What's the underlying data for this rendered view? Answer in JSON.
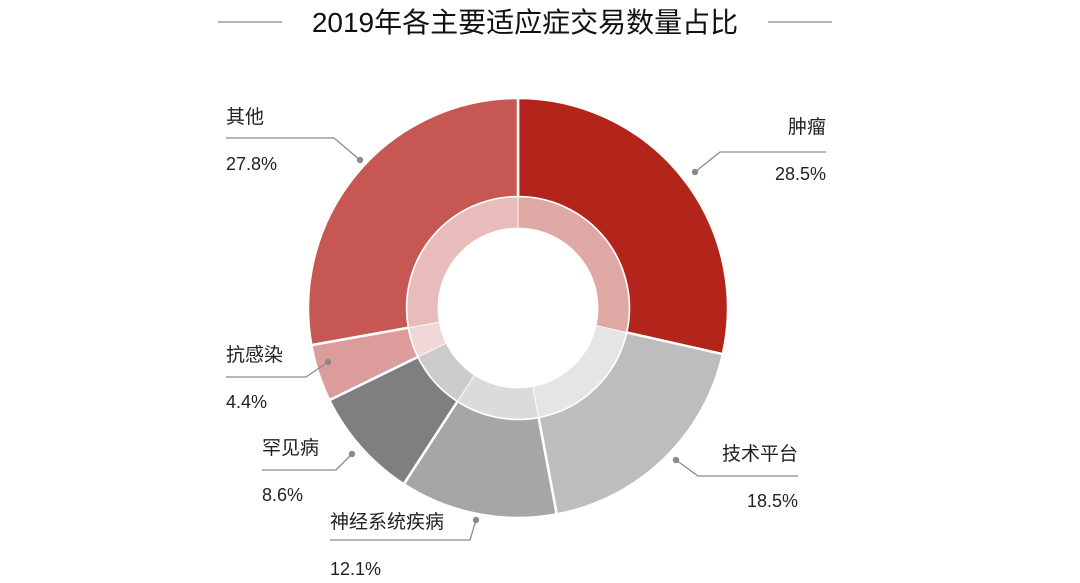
{
  "chart_data": {
    "type": "pie",
    "title": "2019年各主要适应症交易数量占比",
    "unit": "%",
    "categories": [
      "肿瘤",
      "技术平台",
      "神经系统疾病",
      "罕见病",
      "抗感染",
      "其他"
    ],
    "values": [
      28.5,
      18.5,
      12.1,
      8.6,
      4.4,
      27.8
    ],
    "value_labels": [
      "28.5%",
      "18.5%",
      "12.1%",
      "8.6%",
      "4.4%",
      "27.8%"
    ],
    "colors": [
      "#b3241a",
      "#bdbdbd",
      "#a6a6a6",
      "#7f7f7f",
      "#dd9c9c",
      "#c75752"
    ],
    "donut": true,
    "start_angle_deg": 0,
    "direction": "clockwise",
    "legend": "none"
  }
}
